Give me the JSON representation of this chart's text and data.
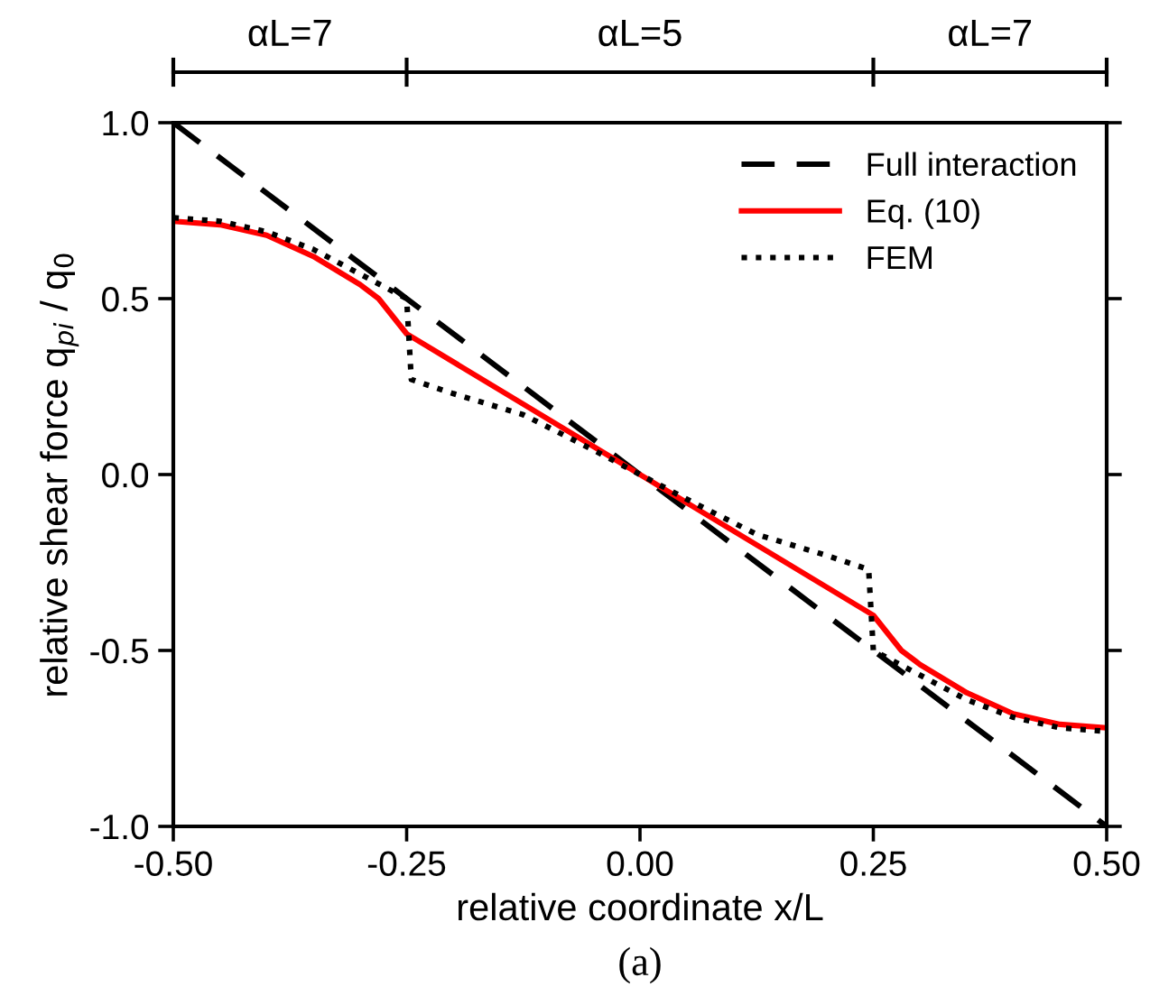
{
  "chart_data": {
    "type": "line",
    "xlabel": "relative coordinate x/L",
    "ylabel": "relative shear force q$_{pi}$ / q$_{0}$",
    "xlim": [
      -0.5,
      0.5
    ],
    "ylim": [
      -1.0,
      1.0
    ],
    "xticks": [
      {
        "value": -0.5,
        "label": "-0.50"
      },
      {
        "value": -0.25,
        "label": "-0.25"
      },
      {
        "value": 0.0,
        "label": "0.00"
      },
      {
        "value": 0.25,
        "label": "0.25"
      },
      {
        "value": 0.5,
        "label": "0.50"
      }
    ],
    "yticks": [
      {
        "value": -1.0,
        "label": "-1.0"
      },
      {
        "value": -0.5,
        "label": "-0.5"
      },
      {
        "value": 0.0,
        "label": "0.0"
      },
      {
        "value": 0.5,
        "label": "0.5"
      },
      {
        "value": 1.0,
        "label": "1.0"
      }
    ],
    "grid": false,
    "legend": "top right",
    "series": [
      {
        "name": "Full interaction",
        "color": "#000000",
        "line_style": "dashed",
        "x": [
          -0.5,
          0.5
        ],
        "values": [
          1.0,
          -1.0
        ]
      },
      {
        "name": "Eq. (10)",
        "color": "#ff0000",
        "line_style": "solid",
        "x": [
          -0.5,
          -0.45,
          -0.4,
          -0.35,
          -0.3,
          -0.28,
          -0.25,
          -0.125,
          0.0,
          0.125,
          0.25,
          0.28,
          0.3,
          0.35,
          0.4,
          0.45,
          0.5
        ],
        "values": [
          0.72,
          0.71,
          0.68,
          0.62,
          0.54,
          0.5,
          0.4,
          0.2,
          0.0,
          -0.2,
          -0.4,
          -0.5,
          -0.54,
          -0.62,
          -0.68,
          -0.71,
          -0.72
        ]
      },
      {
        "name": "FEM",
        "color": "#000000",
        "line_style": "dotted",
        "x": [
          -0.5,
          -0.45,
          -0.4,
          -0.35,
          -0.3,
          -0.25,
          -0.245,
          -0.2,
          -0.125,
          -0.05,
          0.0,
          0.05,
          0.125,
          0.2,
          0.245,
          0.25,
          0.3,
          0.35,
          0.4,
          0.45,
          0.5
        ],
        "values": [
          0.73,
          0.72,
          0.69,
          0.64,
          0.57,
          0.5,
          0.27,
          0.23,
          0.17,
          0.07,
          0.0,
          -0.07,
          -0.17,
          -0.23,
          -0.27,
          -0.5,
          -0.57,
          -0.64,
          -0.69,
          -0.72,
          -0.73
        ]
      }
    ],
    "annotations": [
      "αL=7",
      "αL=5",
      "αL=7",
      "(a)"
    ]
  }
}
